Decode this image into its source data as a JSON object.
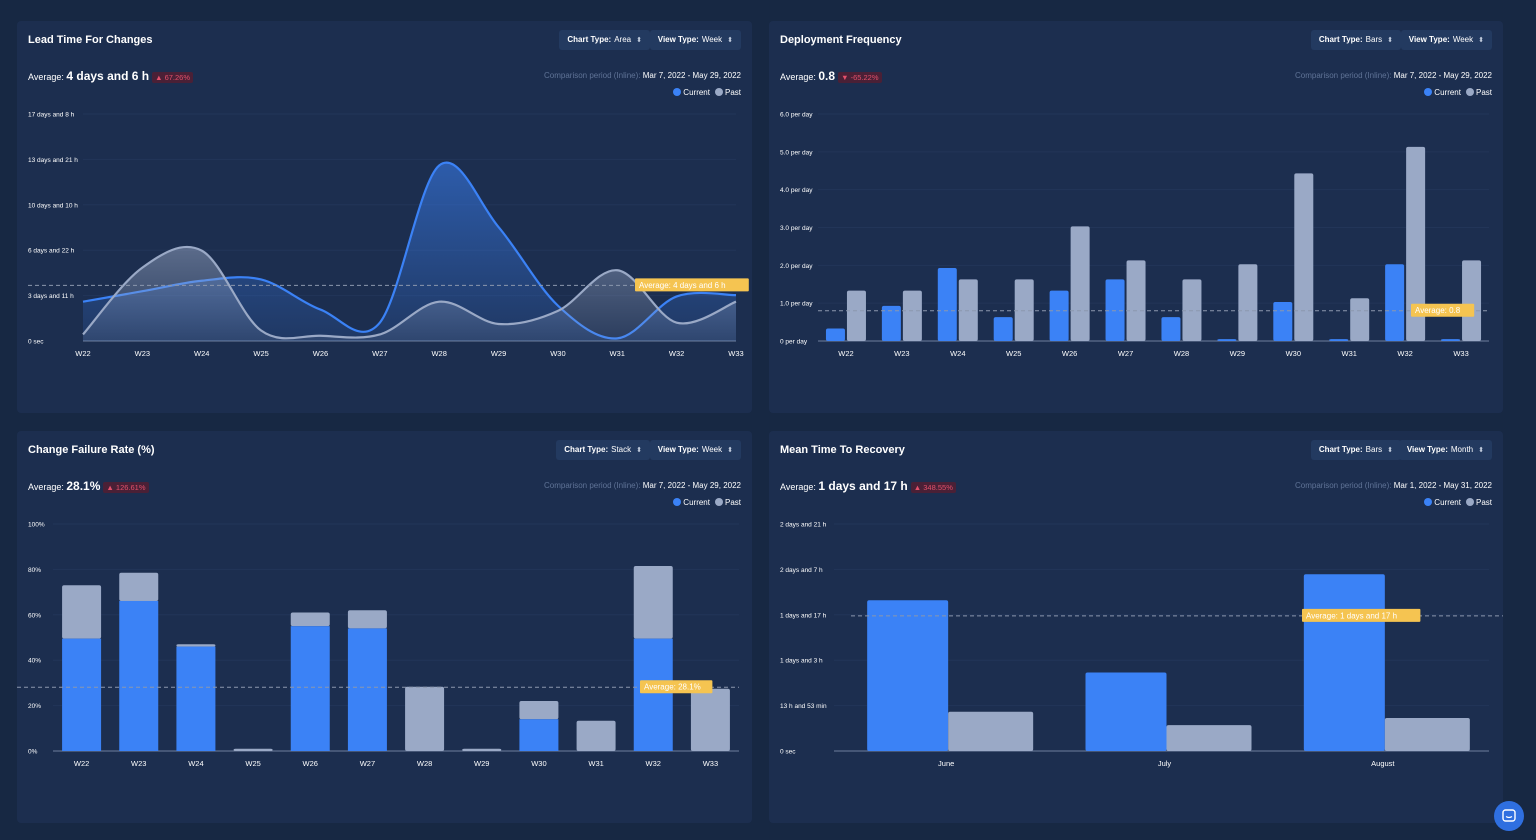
{
  "colors": {
    "current": "#3b82f6",
    "past": "#9aa9c6",
    "average": "#f5c451"
  },
  "charts": [
    {
      "title": "Lead Time For Changes",
      "chart_type_label": "Chart Type:",
      "chart_type_value": "Area",
      "view_type_label": "View Type:",
      "view_type_value": "Week",
      "average_label": "Average:",
      "average_value": "4 days and 6 h",
      "average_change": "▲ 67.26%",
      "comparison_label": "Comparison period (Inline):",
      "comparison_range": "Mar 7, 2022 - May 29, 2022",
      "legend_current": "Current",
      "legend_past": "Past",
      "average_line_label": "Average: 4 days and 6 h"
    },
    {
      "title": "Deployment Frequency",
      "chart_type_label": "Chart Type:",
      "chart_type_value": "Bars",
      "view_type_label": "View Type:",
      "view_type_value": "Week",
      "average_label": "Average:",
      "average_value": "0.8",
      "average_change": "▼ -65.22%",
      "comparison_label": "Comparison period (Inline):",
      "comparison_range": "Mar 7, 2022 - May 29, 2022",
      "legend_current": "Current",
      "legend_past": "Past",
      "average_line_label": "Average: 0.8"
    },
    {
      "title": "Change Failure Rate (%)",
      "chart_type_label": "Chart Type:",
      "chart_type_value": "Stack",
      "view_type_label": "View Type:",
      "view_type_value": "Week",
      "average_label": "Average:",
      "average_value": "28.1%",
      "average_change": "▲ 126.61%",
      "comparison_label": "Comparison period (Inline):",
      "comparison_range": "Mar 7, 2022 - May 29, 2022",
      "legend_current": "Current",
      "legend_past": "Past",
      "average_line_label": "Average: 28.1%"
    },
    {
      "title": "Mean Time To Recovery",
      "chart_type_label": "Chart Type:",
      "chart_type_value": "Bars",
      "view_type_label": "View Type:",
      "view_type_value": "Month",
      "average_label": "Average:",
      "average_value": "1 days and 17 h",
      "average_change": "▲ 348.55%",
      "comparison_label": "Comparison period (Inline):",
      "comparison_range": "Mar 1, 2022 - May 31, 2022",
      "legend_current": "Current",
      "legend_past": "Past",
      "average_line_label": "Average: 1 days and 17 h"
    }
  ],
  "chart_data": [
    {
      "type": "area",
      "title": "Lead Time For Changes",
      "categories": [
        "W22",
        "W23",
        "W24",
        "W25",
        "W26",
        "W27",
        "W28",
        "W29",
        "W30",
        "W31",
        "W32",
        "W33"
      ],
      "y_ticks": [
        "0 sec",
        "3 days and 11 h",
        "6 days and 22 h",
        "10 days and 10 h",
        "13 days and 21 h",
        "17 days and 8 h"
      ],
      "ylim_days": [
        0,
        17.33
      ],
      "y_unit": "days",
      "average": 4.25,
      "series": [
        {
          "name": "Current",
          "values": [
            3.0,
            3.8,
            4.6,
            4.7,
            2.4,
            1.4,
            13.4,
            8.7,
            2.7,
            0.2,
            3.4,
            3.5
          ]
        },
        {
          "name": "Past",
          "values": [
            0.5,
            5.6,
            6.9,
            0.8,
            0.4,
            0.5,
            3.0,
            1.3,
            2.3,
            5.4,
            1.4,
            3.0
          ]
        }
      ],
      "grid": true
    },
    {
      "type": "bar",
      "title": "Deployment Frequency",
      "categories": [
        "W22",
        "W23",
        "W24",
        "W25",
        "W26",
        "W27",
        "W28",
        "W29",
        "W30",
        "W31",
        "W32",
        "W33"
      ],
      "y_ticks": [
        "0 per day",
        "1.0 per day",
        "2.0 per day",
        "3.0 per day",
        "4.0 per day",
        "5.0 per day",
        "6.0 per day"
      ],
      "ylim": [
        0,
        6
      ],
      "average": 0.8,
      "series": [
        {
          "name": "Current",
          "values": [
            0.33,
            0.93,
            1.93,
            0.63,
            1.33,
            1.63,
            0.63,
            0.05,
            1.03,
            0.05,
            2.03,
            0.05
          ]
        },
        {
          "name": "Past",
          "values": [
            1.33,
            1.33,
            1.63,
            1.63,
            3.03,
            2.13,
            1.63,
            2.03,
            4.43,
            1.13,
            5.13,
            2.13
          ]
        }
      ],
      "grid": true
    },
    {
      "type": "bar",
      "stacked": true,
      "title": "Change Failure Rate (%)",
      "categories": [
        "W22",
        "W23",
        "W24",
        "W25",
        "W26",
        "W27",
        "W28",
        "W29",
        "W30",
        "W31",
        "W32",
        "W33"
      ],
      "y_ticks": [
        "0%",
        "20%",
        "40%",
        "60%",
        "80%",
        "100%"
      ],
      "ylim": [
        0,
        100
      ],
      "average": 28.1,
      "series": [
        {
          "name": "Current",
          "values": [
            49.5,
            66.1,
            46,
            0,
            55,
            54,
            0,
            0,
            14,
            0,
            49.5,
            0
          ]
        },
        {
          "name": "Past",
          "values": [
            23.5,
            12.4,
            1,
            1,
            6,
            8,
            28.3,
            1,
            8,
            13.3,
            32,
            27.4
          ]
        }
      ],
      "grid": true
    },
    {
      "type": "bar",
      "title": "Mean Time To Recovery",
      "categories": [
        "June",
        "July",
        "August"
      ],
      "y_ticks": [
        "0 sec",
        "13 h and 53 min",
        "1 days and 3 h",
        "1 days and 17 h",
        "2 days and 7 h",
        "2 days and 21 h"
      ],
      "ylim_days": [
        0,
        2.89
      ],
      "y_unit": "days",
      "average": 1.72,
      "series": [
        {
          "name": "Current",
          "values": [
            1.92,
            1.0,
            2.25
          ]
        },
        {
          "name": "Past",
          "values": [
            0.5,
            0.33,
            0.42
          ]
        }
      ],
      "grid": true
    }
  ]
}
